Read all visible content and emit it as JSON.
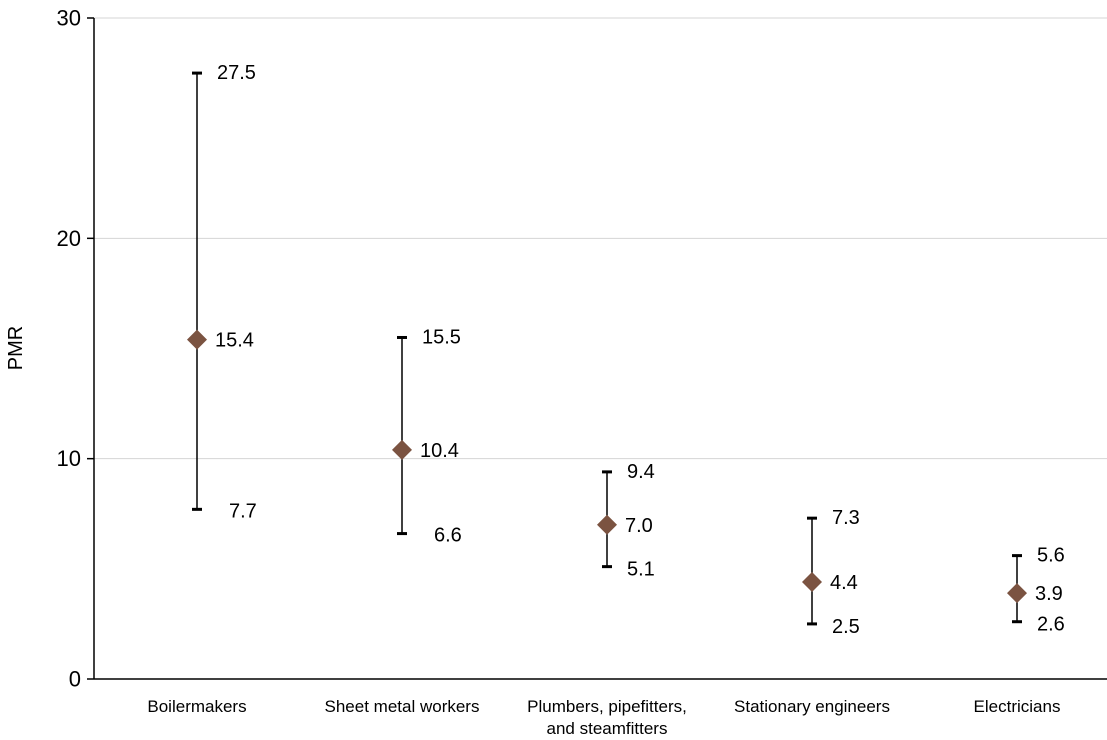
{
  "chart_data": {
    "type": "scatter",
    "title": "",
    "xlabel": "",
    "ylabel": "PMR",
    "ylim": [
      0,
      30
    ],
    "yticks": [
      "0",
      "10",
      "20",
      "30"
    ],
    "grid": true,
    "categories": [
      [
        "Boilermakers"
      ],
      [
        "Sheet metal workers"
      ],
      [
        "Plumbers, pipefitters,",
        "and steamfitters"
      ],
      [
        "Stationary engineers"
      ],
      [
        "Electricians"
      ]
    ],
    "values": [
      15.4,
      10.4,
      7.0,
      4.4,
      3.9
    ],
    "value_labels": [
      "15.4",
      "10.4",
      "7.0",
      "4.4",
      "3.9"
    ],
    "ci_upper": [
      27.5,
      15.5,
      9.4,
      7.3,
      5.6
    ],
    "ci_upper_labels": [
      "27.5",
      "15.5",
      "9.4",
      "7.3",
      "5.6"
    ],
    "ci_lower": [
      7.7,
      6.6,
      5.1,
      2.5,
      2.6
    ],
    "ci_lower_labels": [
      "7.7",
      "6.6",
      "5.1",
      "2.5",
      "2.6"
    ],
    "colors": {
      "marker": "#7b5341",
      "error_bar": "#000000",
      "gridline": "#d4d4d4",
      "axis": "#000000"
    }
  }
}
